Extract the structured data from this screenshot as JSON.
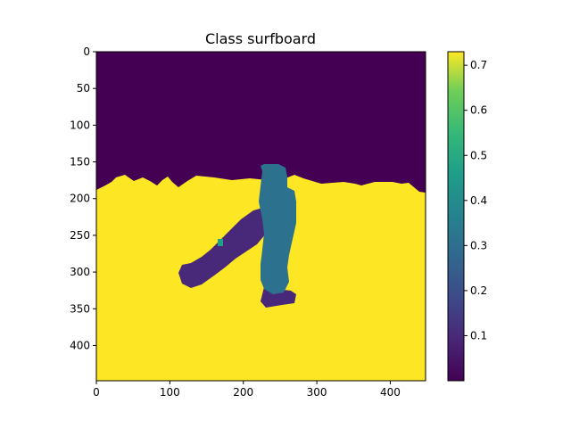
{
  "chart_data": {
    "type": "heatmap",
    "title": "Class surfboard",
    "xlabel": "",
    "ylabel": "",
    "xlim": [
      0,
      448
    ],
    "ylim": [
      448,
      0
    ],
    "x_ticks": [
      0,
      100,
      200,
      300,
      400
    ],
    "y_ticks": [
      0,
      50,
      100,
      150,
      200,
      250,
      300,
      350,
      400
    ],
    "colorbar": {
      "ticks": [
        0.1,
        0.2,
        0.3,
        0.4,
        0.5,
        0.6,
        0.7
      ],
      "range": [
        0.0,
        0.73
      ],
      "colormap": "viridis"
    },
    "regions": [
      {
        "name": "sky",
        "value": 0.0,
        "color": "#440154"
      },
      {
        "name": "water",
        "value": 0.72,
        "color": "#fde725"
      },
      {
        "name": "surfer-body",
        "value": 0.32,
        "color": "#2c728e"
      },
      {
        "name": "surfer-arm",
        "value": 0.08,
        "color": "#482878"
      }
    ]
  }
}
